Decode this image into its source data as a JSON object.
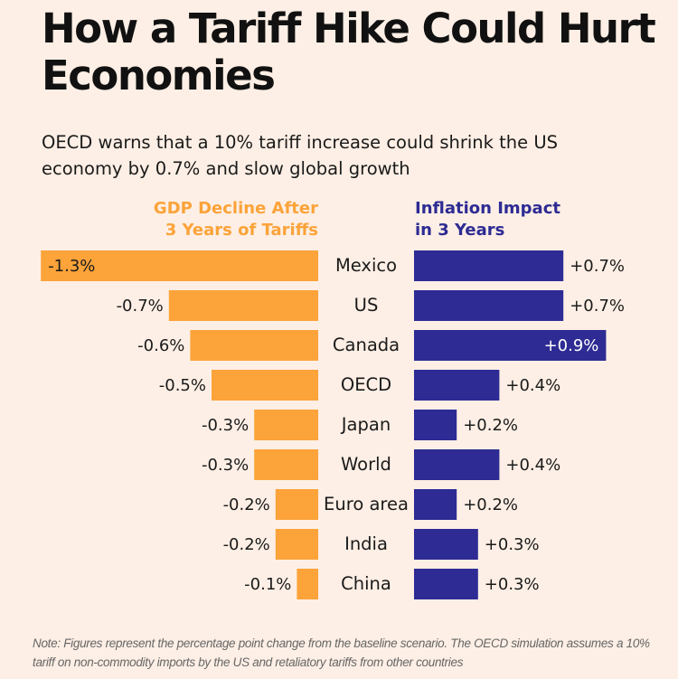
{
  "title": "How a Tariff Hike Could Hurt Economies",
  "subtitle": "OECD warns that a 10% tariff increase could shrink the US economy by 0.7% and slow global growth",
  "note": "Note: Figures represent the percentage point change from the baseline scenario. The OECD simulation assumes a 10% tariff on non-commodity imports by the US and retaliatory tariffs from other countries",
  "colors": {
    "background": "#fdefe5",
    "gdp": "#fca33a",
    "inflation": "#2e2b94"
  },
  "chart_data": {
    "type": "bar",
    "orientation": "horizontal-butterfly",
    "categories": [
      "Mexico",
      "US",
      "Canada",
      "OECD",
      "Japan",
      "World",
      "Euro area",
      "India",
      "China"
    ],
    "series": [
      {
        "name": "GDP Decline After 3 Years of Tariffs",
        "values": [
          -1.3,
          -0.7,
          -0.6,
          -0.5,
          -0.3,
          -0.3,
          -0.2,
          -0.2,
          -0.1
        ],
        "labels": [
          "-1.3%",
          "-0.7%",
          "-0.6%",
          "-0.5%",
          "-0.3%",
          "-0.3%",
          "-0.2%",
          "-0.2%",
          "-0.1%"
        ]
      },
      {
        "name": "Inflation Impact in 3 Years",
        "values": [
          0.7,
          0.7,
          0.9,
          0.4,
          0.2,
          0.4,
          0.2,
          0.3,
          0.3
        ],
        "labels": [
          "+0.7%",
          "+0.7%",
          "+0.9%",
          "+0.4%",
          "+0.2%",
          "+0.4%",
          "+0.2%",
          "+0.3%",
          "+0.3%"
        ]
      }
    ],
    "grid": false,
    "legend": "none"
  }
}
